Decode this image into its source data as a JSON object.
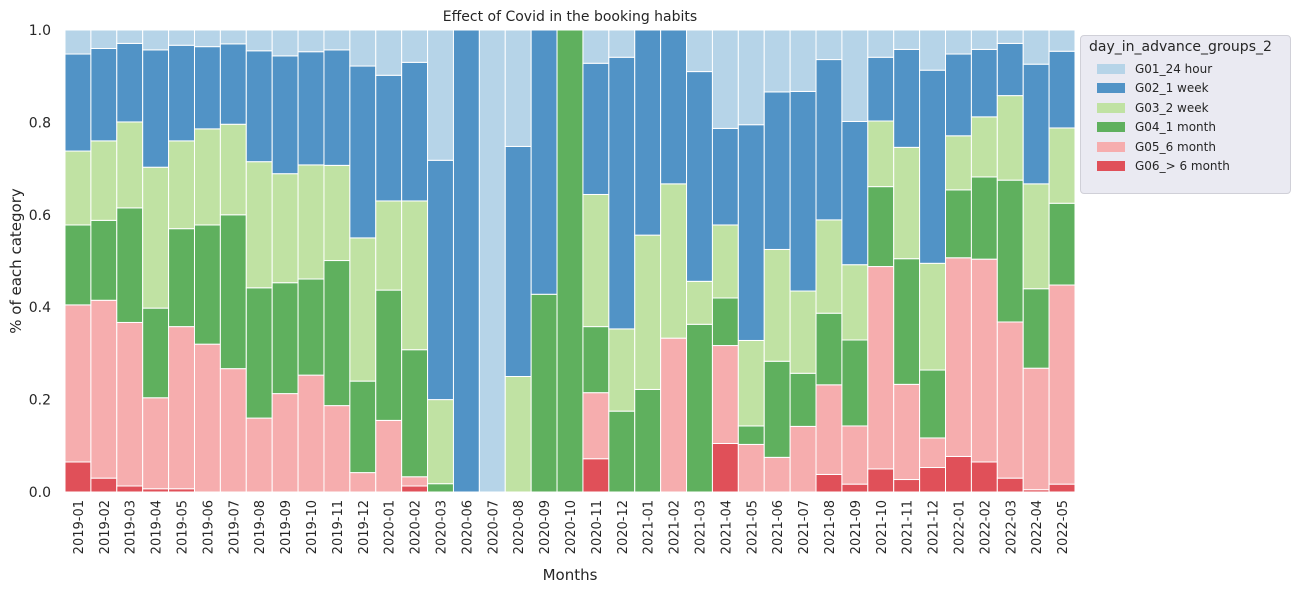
{
  "chart_data": {
    "type": "bar",
    "stacked": true,
    "normalized": true,
    "title": "Effect of Covid in the booking habits",
    "xlabel": "Months",
    "ylabel": "% of each category",
    "ylim": [
      0,
      1.0
    ],
    "yticks": [
      "0.0",
      "0.2",
      "0.4",
      "0.6",
      "0.8",
      "1.0"
    ],
    "grid": false,
    "legend_title": "day_in_advance_groups_2",
    "legend_position": "outside-top-right",
    "categories": [
      "2019-01",
      "2019-02",
      "2019-03",
      "2019-04",
      "2019-05",
      "2019-06",
      "2019-07",
      "2019-08",
      "2019-09",
      "2019-10",
      "2019-11",
      "2019-12",
      "2020-01",
      "2020-02",
      "2020-03",
      "2020-06",
      "2020-07",
      "2020-08",
      "2020-09",
      "2020-10",
      "2020-11",
      "2020-12",
      "2021-01",
      "2021-02",
      "2021-03",
      "2021-04",
      "2021-05",
      "2021-06",
      "2021-07",
      "2021-08",
      "2021-09",
      "2021-10",
      "2021-11",
      "2021-12",
      "2022-01",
      "2022-02",
      "2022-03",
      "2022-04",
      "2022-05"
    ],
    "series": [
      {
        "name": "G06_> 6 month",
        "color": "#e05059",
        "values": [
          0.065,
          0.03,
          0.013,
          0.007,
          0.007,
          0,
          0,
          0,
          0,
          0,
          0,
          0,
          0,
          0.013,
          0,
          0,
          0,
          0,
          0,
          0,
          0.072,
          0,
          0,
          0,
          0,
          0.105,
          0,
          0,
          0,
          0.038,
          0.017,
          0.05,
          0.027,
          0.053,
          0.077,
          0.065,
          0.03,
          0.005,
          0.017
        ]
      },
      {
        "name": "G05_6 month",
        "color": "#f6adae",
        "values": [
          0.34,
          0.385,
          0.354,
          0.197,
          0.351,
          0.32,
          0.267,
          0.16,
          0.213,
          0.253,
          0.187,
          0.042,
          0.155,
          0.02,
          0,
          0,
          0,
          0,
          0,
          0,
          0.143,
          0,
          0,
          0.333,
          0,
          0.212,
          0.103,
          0.075,
          0.142,
          0.194,
          0.126,
          0.438,
          0.206,
          0.064,
          0.43,
          0.439,
          0.338,
          0.263,
          0.431
        ]
      },
      {
        "name": "G04_1 month",
        "color": "#5fb05e",
        "values": [
          0.173,
          0.173,
          0.248,
          0.194,
          0.212,
          0.258,
          0.333,
          0.282,
          0.24,
          0.208,
          0.314,
          0.198,
          0.282,
          0.275,
          0.018,
          0,
          0,
          0,
          0.428,
          1.0,
          0.143,
          0.175,
          0.222,
          0,
          0.363,
          0.103,
          0.04,
          0.208,
          0.115,
          0.155,
          0.186,
          0.173,
          0.272,
          0.147,
          0.147,
          0.178,
          0.307,
          0.172,
          0.177
        ]
      },
      {
        "name": "G03_2 week",
        "color": "#c0e2a3",
        "values": [
          0.16,
          0.172,
          0.186,
          0.305,
          0.19,
          0.208,
          0.196,
          0.273,
          0.236,
          0.247,
          0.206,
          0.31,
          0.193,
          0.322,
          0.182,
          0,
          0,
          0.25,
          0,
          0,
          0.286,
          0.178,
          0.334,
          0.334,
          0.093,
          0.158,
          0.185,
          0.242,
          0.178,
          0.202,
          0.163,
          0.142,
          0.241,
          0.231,
          0.117,
          0.13,
          0.183,
          0.227,
          0.163
        ]
      },
      {
        "name": "G02_1 week",
        "color": "#5193c6",
        "values": [
          0.21,
          0.2,
          0.17,
          0.254,
          0.207,
          0.178,
          0.174,
          0.24,
          0.255,
          0.245,
          0.25,
          0.372,
          0.272,
          0.3,
          0.518,
          1.0,
          0,
          0.498,
          0.572,
          0,
          0.284,
          0.588,
          0.444,
          0.333,
          0.454,
          0.209,
          0.467,
          0.341,
          0.432,
          0.347,
          0.31,
          0.138,
          0.212,
          0.418,
          0.177,
          0.146,
          0.113,
          0.259,
          0.166
        ]
      },
      {
        "name": "G01_24 hour",
        "color": "#b6d4e8",
        "values": [
          0.052,
          0.04,
          0.029,
          0.043,
          0.033,
          0.036,
          0.03,
          0.045,
          0.056,
          0.047,
          0.043,
          0.078,
          0.098,
          0.07,
          0.282,
          0,
          1.0,
          0.252,
          0,
          0,
          0.072,
          0.059,
          0,
          0,
          0.09,
          0.213,
          0.205,
          0.134,
          0.133,
          0.064,
          0.198,
          0.059,
          0.042,
          0.087,
          0.052,
          0.042,
          0.029,
          0.074,
          0.046
        ]
      }
    ]
  }
}
